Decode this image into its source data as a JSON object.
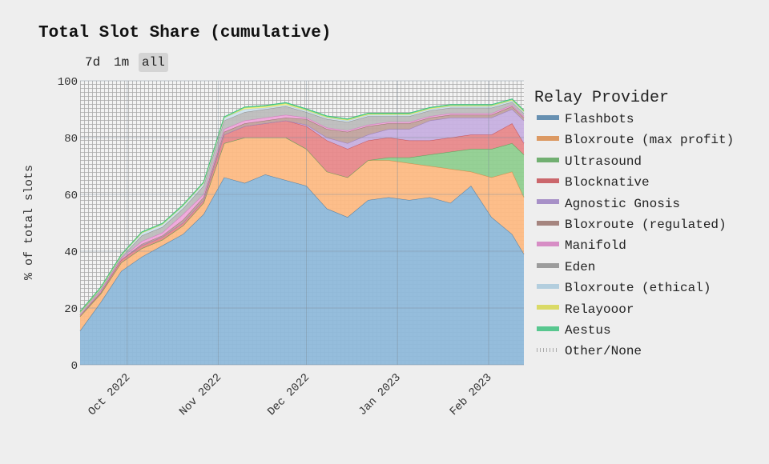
{
  "title": "Total Slot Share (cumulative)",
  "range_buttons": [
    {
      "label": "7d",
      "active": false
    },
    {
      "label": "1m",
      "active": false
    },
    {
      "label": "all",
      "active": true
    }
  ],
  "chart_data": {
    "type": "area",
    "stacked": true,
    "title": "Total Slot Share (cumulative)",
    "xlabel": "",
    "ylabel": "% of total slots",
    "ylim": [
      0,
      100
    ],
    "yticks": [
      0,
      20,
      40,
      60,
      80,
      100
    ],
    "xticks": [
      {
        "date": "2022-10-01",
        "label": "Oct 2022"
      },
      {
        "date": "2022-11-01",
        "label": "Nov 2022"
      },
      {
        "date": "2022-12-01",
        "label": "Dec 2022"
      },
      {
        "date": "2023-01-01",
        "label": "Jan 2023"
      },
      {
        "date": "2023-02-01",
        "label": "Feb 2023"
      }
    ],
    "xlim": [
      "2022-09-15",
      "2023-02-13"
    ],
    "grid": true,
    "legend_title": "Relay Provider",
    "legend_position": "right",
    "x": [
      "2022-09-15",
      "2022-09-22",
      "2022-09-29",
      "2022-10-06",
      "2022-10-13",
      "2022-10-20",
      "2022-10-27",
      "2022-11-03",
      "2022-11-10",
      "2022-11-17",
      "2022-11-24",
      "2022-12-01",
      "2022-12-08",
      "2022-12-15",
      "2022-12-22",
      "2022-12-29",
      "2023-01-05",
      "2023-01-12",
      "2023-01-19",
      "2023-01-26",
      "2023-02-02",
      "2023-02-09",
      "2023-02-13"
    ],
    "series": [
      {
        "name": "Flashbots",
        "color": "#8fb9da",
        "line": "#4f7fa6",
        "values": [
          12,
          22,
          33,
          38,
          42,
          46,
          53,
          66,
          64,
          67,
          65,
          63,
          55,
          52,
          58,
          59,
          58,
          59,
          57,
          63,
          52,
          46,
          39
        ]
      },
      {
        "name": "Bloxroute (max profit)",
        "color": "#fdbb84",
        "line": "#d88a4a",
        "values": [
          5,
          3,
          3,
          3,
          2,
          3,
          4,
          12,
          16,
          13,
          15,
          13,
          13,
          14,
          14,
          13,
          13,
          11,
          12,
          5,
          14,
          22,
          20
        ]
      },
      {
        "name": "Ultrasound",
        "color": "#90cf90",
        "line": "#5ba35b",
        "values": [
          0,
          0,
          0,
          0,
          0,
          0,
          0,
          0,
          0,
          0,
          0,
          0,
          0,
          0,
          0,
          1,
          2,
          4,
          6,
          8,
          10,
          10,
          15
        ]
      },
      {
        "name": "Blocknative",
        "color": "#e8898b",
        "line": "#c44f55",
        "values": [
          0.5,
          0.5,
          1,
          1,
          1,
          1,
          1,
          3,
          4,
          5,
          6,
          8,
          11,
          10,
          7,
          7,
          6,
          5,
          5,
          5,
          5,
          7,
          4
        ]
      },
      {
        "name": "Agnostic Gnosis",
        "color": "#c7b0e0",
        "line": "#9a7fbf",
        "values": [
          0,
          0,
          0,
          0,
          0,
          0,
          0,
          0,
          0,
          0,
          0,
          0.5,
          1,
          2,
          2,
          3,
          4,
          7,
          7,
          6,
          6,
          5,
          8
        ]
      },
      {
        "name": "Bloxroute (regulated)",
        "color": "#c2a39e",
        "line": "#98726b",
        "values": [
          0,
          0,
          0,
          0.5,
          0.5,
          1,
          1,
          1,
          1,
          1,
          1,
          2,
          3,
          4,
          3,
          2,
          2,
          1,
          1,
          1,
          1,
          1,
          1
        ]
      },
      {
        "name": "Manifold",
        "color": "#f0a9dc",
        "line": "#d27bbd",
        "values": [
          0,
          0.5,
          0.5,
          1,
          1,
          2,
          1,
          1,
          1,
          1,
          1,
          0.5,
          0.5,
          0.5,
          0.5,
          0.5,
          0.5,
          0.5,
          0.5,
          0.5,
          0.5,
          0.5,
          0.5
        ]
      },
      {
        "name": "Eden",
        "color": "#bdbdbd",
        "line": "#8d8d8d",
        "values": [
          1,
          0.5,
          0.5,
          2,
          2,
          2,
          3,
          3,
          3,
          3,
          3,
          2,
          3,
          3,
          3,
          2,
          2,
          2,
          2,
          2,
          2,
          1,
          1
        ]
      },
      {
        "name": "Bloxroute (ethical)",
        "color": "#d0e4ef",
        "line": "#a8c8db",
        "values": [
          0,
          0.5,
          0.5,
          1,
          1,
          1,
          1,
          1,
          1,
          0.5,
          0.5,
          0.5,
          0.5,
          0.5,
          0.5,
          0.5,
          0.5,
          0.5,
          0.5,
          0.5,
          0.5,
          0.5,
          0.5
        ]
      },
      {
        "name": "Relayooor",
        "color": "#f4f48a",
        "line": "#d6d64f",
        "values": [
          0,
          0,
          0,
          0,
          0,
          0,
          0,
          0,
          0.5,
          0.5,
          0.5,
          0.3,
          0.3,
          0.3,
          0.3,
          0.3,
          0.3,
          0.3,
          0.3,
          0.3,
          0.3,
          0.3,
          0.3
        ]
      },
      {
        "name": "Aestus",
        "color": "#72e0aa",
        "line": "#3dbf7e",
        "values": [
          0.3,
          0.3,
          0.3,
          0.3,
          0.3,
          0.3,
          0.3,
          0.3,
          0.3,
          0.3,
          0.3,
          0.3,
          0.3,
          0.3,
          0.3,
          0.3,
          0.3,
          0.3,
          0.3,
          0.3,
          0.3,
          0.3,
          0.3
        ]
      },
      {
        "name": "Other/None",
        "color": "hatched",
        "line": "#999999",
        "remainder": true
      }
    ]
  }
}
